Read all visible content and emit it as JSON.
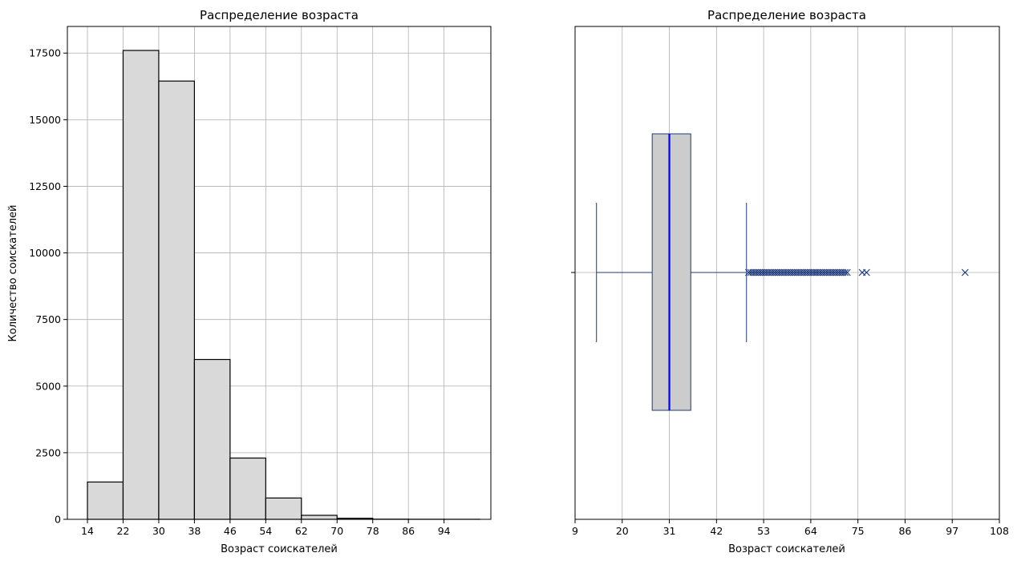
{
  "chart_data": [
    {
      "type": "bar",
      "title": "Распределение возраста",
      "xlabel": "Возраст соискателей",
      "ylabel": "Количество соискателей",
      "x_ticks": [
        14,
        22,
        30,
        38,
        46,
        54,
        62,
        70,
        78,
        86,
        94
      ],
      "y_ticks": [
        0,
        2500,
        5000,
        7500,
        10000,
        12500,
        15000,
        17500
      ],
      "xlim": [
        9.5,
        104.5
      ],
      "ylim": [
        0,
        18500
      ],
      "grid": true,
      "bin_edges": [
        14,
        22,
        30,
        38,
        46,
        54,
        62,
        70,
        78,
        86,
        94,
        102
      ],
      "values": [
        1400,
        17600,
        16450,
        6000,
        2300,
        800,
        150,
        40,
        6,
        3,
        2
      ],
      "bar_fill": "#d9d9d9",
      "bar_edge": "#000000"
    },
    {
      "type": "box",
      "title": "Распределение возраста",
      "xlabel": "Возраст соискателей",
      "x_ticks": [
        9,
        20,
        31,
        42,
        53,
        64,
        75,
        86,
        97,
        108
      ],
      "xlim": [
        9,
        108
      ],
      "grid": true,
      "min": 14,
      "q1": 27,
      "median": 31,
      "q3": 36,
      "whisker_high": 49,
      "outliers": [
        49.5,
        50,
        50.5,
        51,
        51.5,
        52,
        52.5,
        53,
        53.5,
        54,
        54.5,
        55,
        55.5,
        56,
        56.5,
        57,
        57.5,
        58,
        58.5,
        59,
        59.5,
        60,
        60.5,
        61,
        61.5,
        62,
        62.5,
        63,
        63.5,
        64,
        64.5,
        65,
        65.5,
        66,
        66.5,
        67,
        67.5,
        68,
        68.5,
        69,
        69.5,
        70,
        70.5,
        71,
        71.5,
        72,
        72.5,
        76,
        77,
        100
      ],
      "box_fill": "#cccccc",
      "box_edge": "#1f3a7a",
      "median_color": "#0000ff",
      "whisker_color": "#1f3a7a",
      "outlier_marker": "x"
    }
  ]
}
